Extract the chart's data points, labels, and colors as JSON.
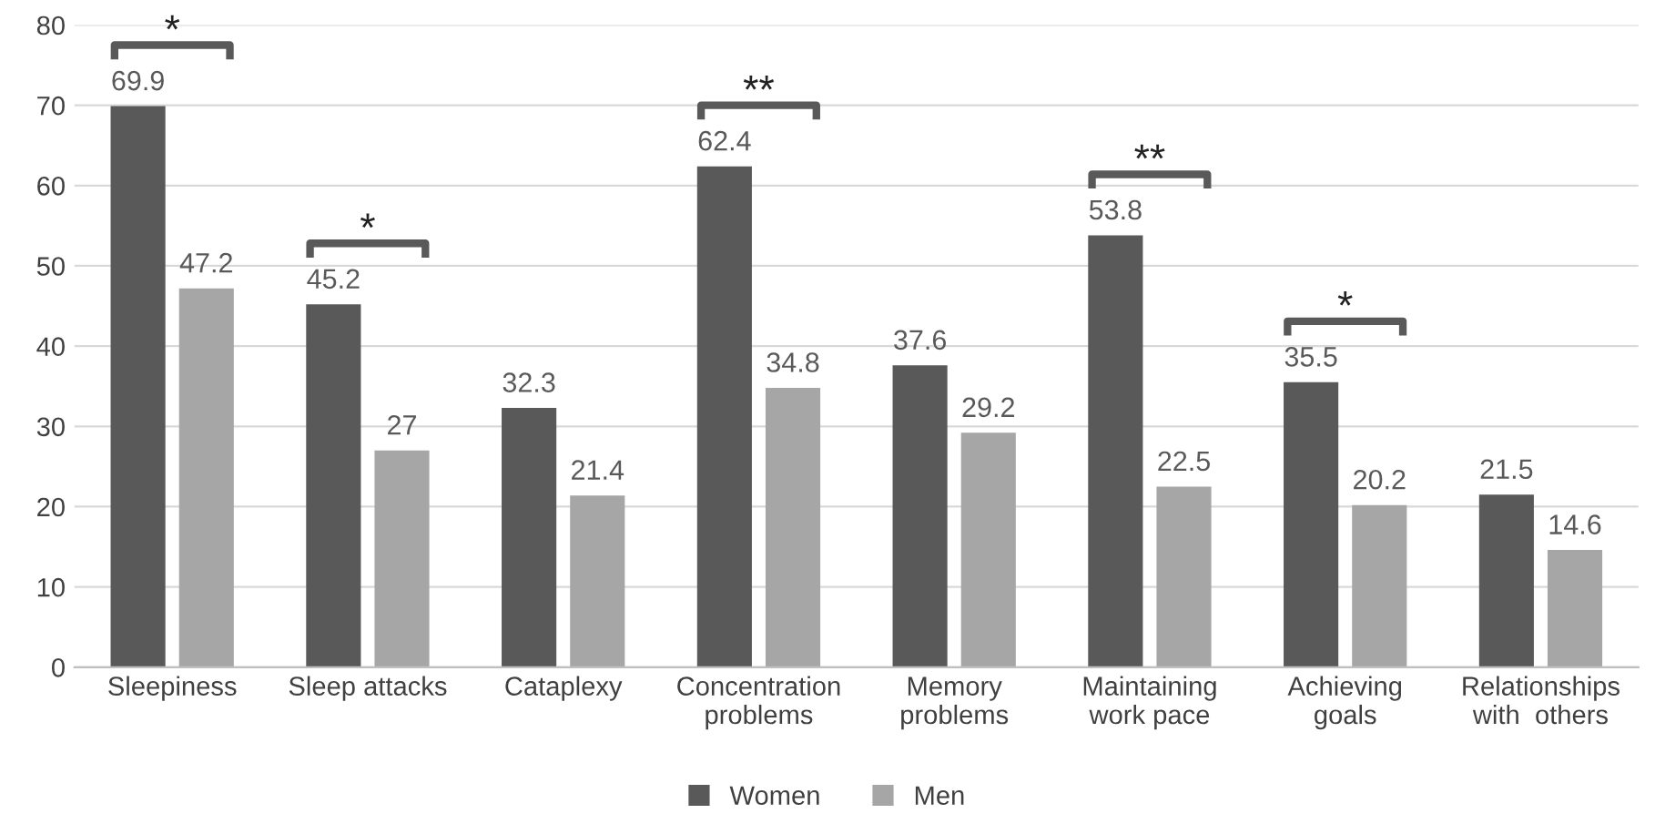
{
  "chart_data": {
    "type": "bar",
    "categories": [
      "Sleepiness",
      "Sleep attacks",
      "Cataplexy",
      "Concentration\nproblems",
      "Memory\nproblems",
      "Maintaining\nwork pace",
      "Achieving\ngoals",
      "Relationships\nwith  others"
    ],
    "series": [
      {
        "name": "Women",
        "color": "#595959",
        "values": [
          69.9,
          45.2,
          32.3,
          62.4,
          37.6,
          53.8,
          35.5,
          21.5
        ]
      },
      {
        "name": "Men",
        "color": "#a6a6a6",
        "values": [
          47.2,
          27,
          21.4,
          34.8,
          29.2,
          22.5,
          20.2,
          14.6
        ]
      }
    ],
    "ylim": [
      0,
      80
    ],
    "yticks": [
      0,
      10,
      20,
      30,
      40,
      50,
      60,
      70,
      80
    ],
    "grid": "y",
    "legend": "bottom",
    "data_labels": true,
    "annotations": [
      {
        "text": "*",
        "x": "Sleepiness",
        "y": 69.9
      },
      {
        "text": "*",
        "x": "Sleep attacks",
        "y": 45.2
      },
      {
        "text": "**",
        "x": "Concentration\nproblems",
        "y": 62.4
      },
      {
        "text": "**",
        "x": "Maintaining\nwork pace",
        "y": 53.8
      },
      {
        "text": "*",
        "x": "Achieving\ngoals",
        "y": 35.5
      }
    ]
  }
}
